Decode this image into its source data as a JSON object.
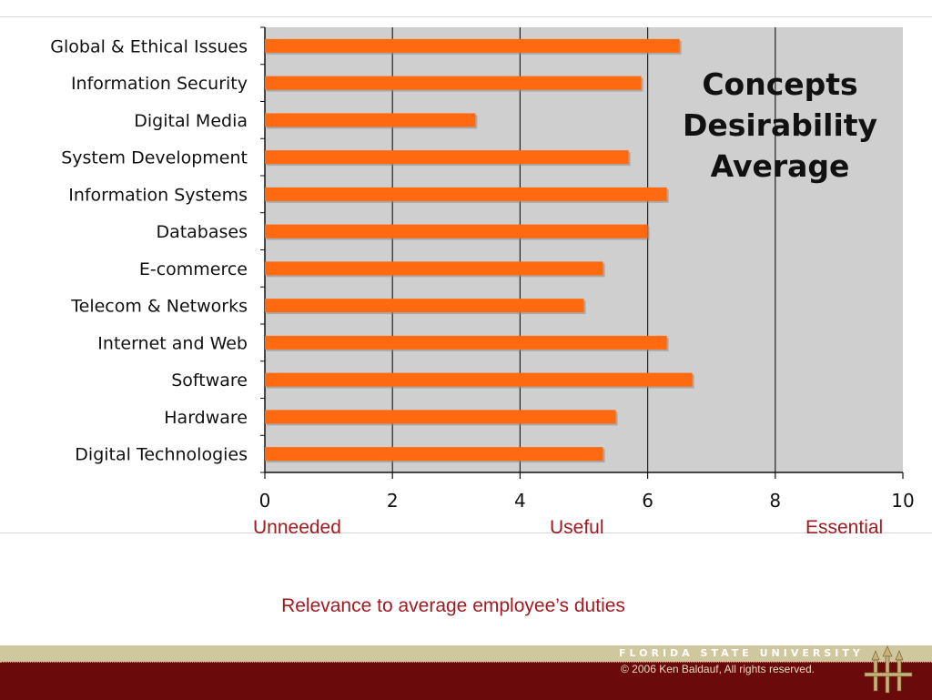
{
  "colors": {
    "bar": "#ff6a10",
    "bar_shadow": "#8a8a8a",
    "plot_background": "#cfcfcf",
    "caption": "#a11a1f",
    "footer_light": "#cfc79e",
    "footer_dark": "#6b0a0a"
  },
  "chart_data": {
    "type": "bar",
    "orientation": "horizontal",
    "title_lines": [
      "Concepts",
      "Desirability",
      "Average"
    ],
    "categories": [
      "Global & Ethical Issues",
      "Information Security",
      "Digital Media",
      "System Development",
      "Information Systems",
      "Databases",
      "E-commerce",
      "Telecom & Networks",
      "Internet and Web",
      "Software",
      "Hardware",
      "Digital Technologies"
    ],
    "values": [
      6.5,
      5.9,
      3.3,
      5.7,
      6.3,
      6.0,
      5.3,
      5.0,
      6.3,
      6.7,
      5.5,
      5.3
    ],
    "xlim": [
      0,
      10
    ],
    "xticks": [
      "0",
      "2",
      "4",
      "6",
      "8",
      "10"
    ],
    "gridlines": [
      2,
      4,
      6,
      8
    ],
    "legend": "none"
  },
  "scale_labels": {
    "low": "Unneeded",
    "mid": "Useful",
    "high": "Essential"
  },
  "caption": "Relevance to average employee’s duties",
  "footer": {
    "university": "FLORIDA STATE UNIVERSITY",
    "copyright": "© 2006 Ken Baldauf, All rights reserved."
  }
}
